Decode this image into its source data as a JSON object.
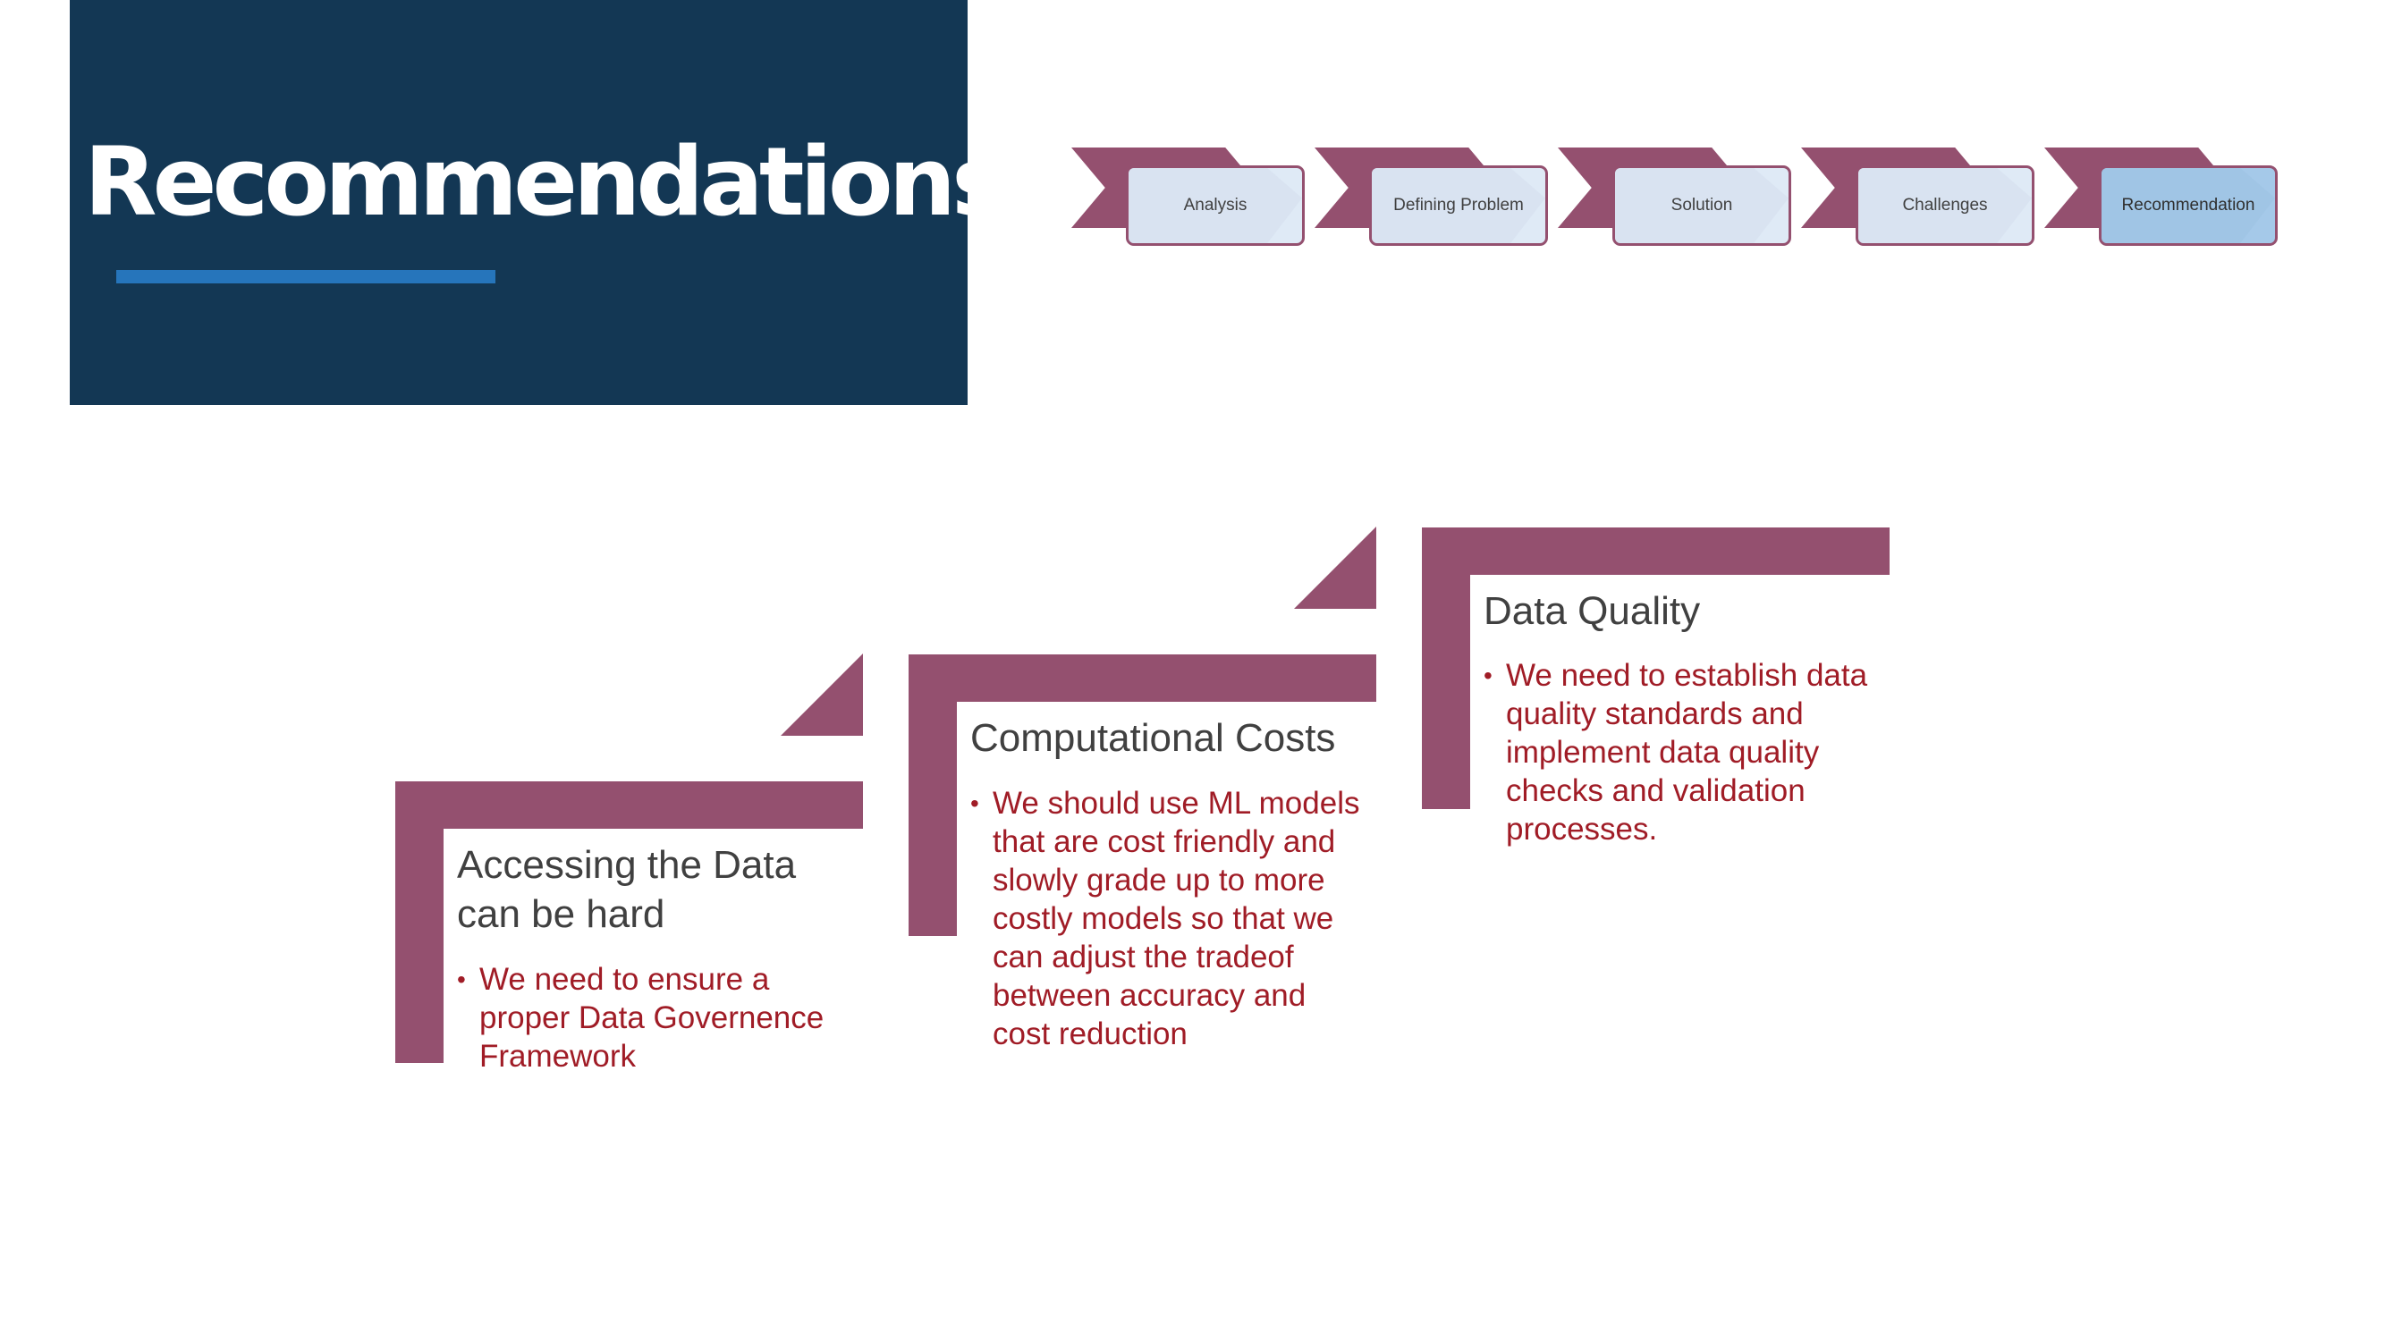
{
  "title": "Recommendations",
  "process_steps": [
    {
      "label": "Analysis",
      "active": false
    },
    {
      "label": "Defining Problem",
      "active": false
    },
    {
      "label": "Solution",
      "active": false
    },
    {
      "label": "Challenges",
      "active": false
    },
    {
      "label": "Recommendation",
      "active": true
    }
  ],
  "cards": [
    {
      "title": "Accessing the Data can be hard",
      "bullet": "We need to ensure a proper Data Governence Framework"
    },
    {
      "title": "Computational Costs",
      "bullet": "We should use ML models that are cost friendly and slowly grade up to more costly models so that we can adjust the tradeof between accuracy and cost reduction"
    },
    {
      "title": "Data Quality",
      "bullet": "We need to establish data quality standards and implement data quality checks and validation processes."
    }
  ],
  "colors": {
    "title_bg": "#133754",
    "accent": "#94506f",
    "underline": "#2675bb",
    "bullet_text": "#a01c26"
  }
}
